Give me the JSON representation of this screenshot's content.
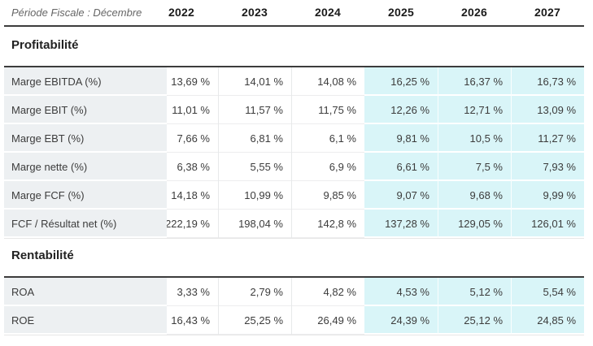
{
  "header": {
    "period_label": "Période Fiscale : Décembre",
    "years": [
      "2022",
      "2023",
      "2024",
      "2025",
      "2026",
      "2027"
    ]
  },
  "sections": [
    {
      "title": "Profitabilité",
      "rows": [
        {
          "label": "Marge EBITDA (%)",
          "values": [
            "13,69 %",
            "14,01 %",
            "14,08 %",
            "16,25 %",
            "16,37 %",
            "16,73 %"
          ]
        },
        {
          "label": "Marge EBIT (%)",
          "values": [
            "11,01 %",
            "11,57 %",
            "11,75 %",
            "12,26 %",
            "12,71 %",
            "13,09 %"
          ]
        },
        {
          "label": "Marge EBT (%)",
          "values": [
            "7,66 %",
            "6,81 %",
            "6,1 %",
            "9,81 %",
            "10,5 %",
            "11,27 %"
          ]
        },
        {
          "label": "Marge nette (%)",
          "values": [
            "6,38 %",
            "5,55 %",
            "6,9 %",
            "6,61 %",
            "7,5 %",
            "7,93 %"
          ]
        },
        {
          "label": "Marge FCF (%)",
          "values": [
            "14,18 %",
            "10,99 %",
            "9,85 %",
            "9,07 %",
            "9,68 %",
            "9,99 %"
          ]
        },
        {
          "label": "FCF / Résultat net (%)",
          "values": [
            "222,19 %",
            "198,04 %",
            "142,8 %",
            "137,28 %",
            "129,05 %",
            "126,01 %"
          ]
        }
      ]
    },
    {
      "title": "Rentabilité",
      "rows": [
        {
          "label": "ROA",
          "values": [
            "3,33 %",
            "2,79 %",
            "4,82 %",
            "4,53 %",
            "5,12 %",
            "5,54 %"
          ]
        },
        {
          "label": "ROE",
          "values": [
            "16,43 %",
            "25,25 %",
            "26,49 %",
            "24,39 %",
            "25,12 %",
            "24,85 %"
          ]
        }
      ]
    }
  ],
  "colors": {
    "forecast_column_bg": "#d9f5f8",
    "label_column_bg": "#edf0f2",
    "header_border": "#3c3c3c",
    "period_label_text": "#666666",
    "value_text": "#3c3c3c"
  }
}
